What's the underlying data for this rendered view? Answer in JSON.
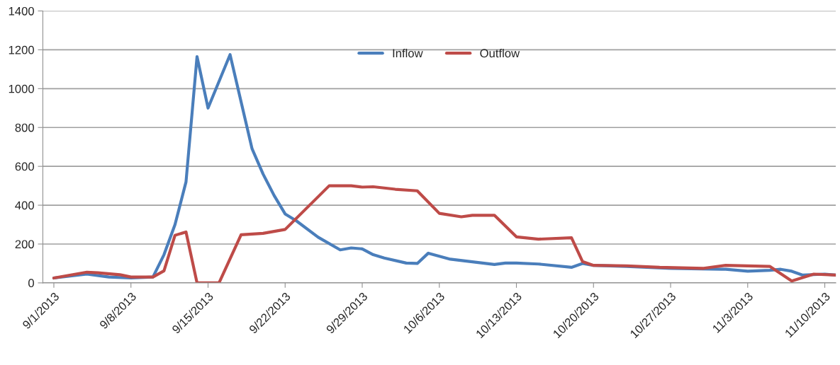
{
  "chart_data": {
    "type": "line",
    "x": [
      "2013-09-01",
      "2013-09-04",
      "2013-09-06",
      "2013-09-08",
      "2013-09-10",
      "2013-09-11",
      "2013-09-12",
      "2013-09-13",
      "2013-09-14",
      "2013-09-15",
      "2013-09-17",
      "2013-09-19",
      "2013-09-20",
      "2013-09-21",
      "2013-09-22",
      "2013-09-23",
      "2013-09-25",
      "2013-09-27",
      "2013-09-28",
      "2013-09-29",
      "2013-09-30",
      "2013-10-01",
      "2013-10-03",
      "2013-10-04",
      "2013-10-05",
      "2013-10-07",
      "2013-10-11",
      "2013-10-12",
      "2013-10-13",
      "2013-10-15",
      "2013-10-18",
      "2013-10-19",
      "2013-10-20",
      "2013-10-23",
      "2013-10-27",
      "2013-11-01",
      "2013-11-03",
      "2013-11-05",
      "2013-11-06",
      "2013-11-07",
      "2013-11-08",
      "2013-11-10",
      "2013-11-11"
    ],
    "series": [
      {
        "name": "Inflow",
        "color": "#4a7ebb",
        "values": [
          25,
          45,
          30,
          25,
          30,
          145,
          300,
          520,
          1165,
          900,
          1175,
          690,
          560,
          450,
          355,
          320,
          235,
          170,
          180,
          175,
          145,
          128,
          102,
          100,
          153,
          122,
          95,
          102,
          102,
          97,
          80,
          100,
          90,
          85,
          75,
          70,
          60,
          65,
          70,
          60,
          40,
          45,
          40
        ]
      },
      {
        "name": "Outflow",
        "color": "#be4b48",
        "x": [
          "2013-09-01",
          "2013-09-04",
          "2013-09-05",
          "2013-09-07",
          "2013-09-08",
          "2013-09-10",
          "2013-09-11",
          "2013-09-12",
          "2013-09-13",
          "2013-09-14",
          "2013-09-16",
          "2013-09-18",
          "2013-09-20",
          "2013-09-22",
          "2013-09-26",
          "2013-09-28",
          "2013-09-29",
          "2013-09-30",
          "2013-10-02",
          "2013-10-04",
          "2013-10-06",
          "2013-10-08",
          "2013-10-09",
          "2013-10-11",
          "2013-10-13",
          "2013-10-15",
          "2013-10-18",
          "2013-10-19",
          "2013-10-20",
          "2013-10-23",
          "2013-10-26",
          "2013-10-30",
          "2013-11-01",
          "2013-11-05",
          "2013-11-07",
          "2013-11-09",
          "2013-11-11"
        ],
        "values": [
          25,
          55,
          52,
          42,
          30,
          30,
          62,
          245,
          262,
          0,
          0,
          248,
          255,
          275,
          500,
          500,
          493,
          495,
          482,
          474,
          358,
          340,
          348,
          348,
          237,
          225,
          232,
          110,
          90,
          88,
          80,
          75,
          90,
          85,
          10,
          45,
          40
        ]
      }
    ],
    "xlim": [
      "2013-08-31",
      "2013-11-11"
    ],
    "xticks": [
      {
        "value": "2013-09-01",
        "label": "9/1/2013"
      },
      {
        "value": "2013-09-08",
        "label": "9/8/2013"
      },
      {
        "value": "2013-09-15",
        "label": "9/15/2013"
      },
      {
        "value": "2013-09-22",
        "label": "9/22/2013"
      },
      {
        "value": "2013-09-29",
        "label": "9/29/2013"
      },
      {
        "value": "2013-10-06",
        "label": "10/6/2013"
      },
      {
        "value": "2013-10-13",
        "label": "10/13/2013"
      },
      {
        "value": "2013-10-20",
        "label": "10/20/2013"
      },
      {
        "value": "2013-10-27",
        "label": "10/27/2013"
      },
      {
        "value": "2013-11-03",
        "label": "11/3/2013"
      },
      {
        "value": "2013-11-10",
        "label": "11/10/2013"
      }
    ],
    "ylim": [
      0,
      1400
    ],
    "yticks": [
      0,
      200,
      400,
      600,
      800,
      1000,
      1200,
      1400
    ],
    "grid": "y",
    "legend": "top",
    "marker": "none",
    "line_style": "solid"
  }
}
